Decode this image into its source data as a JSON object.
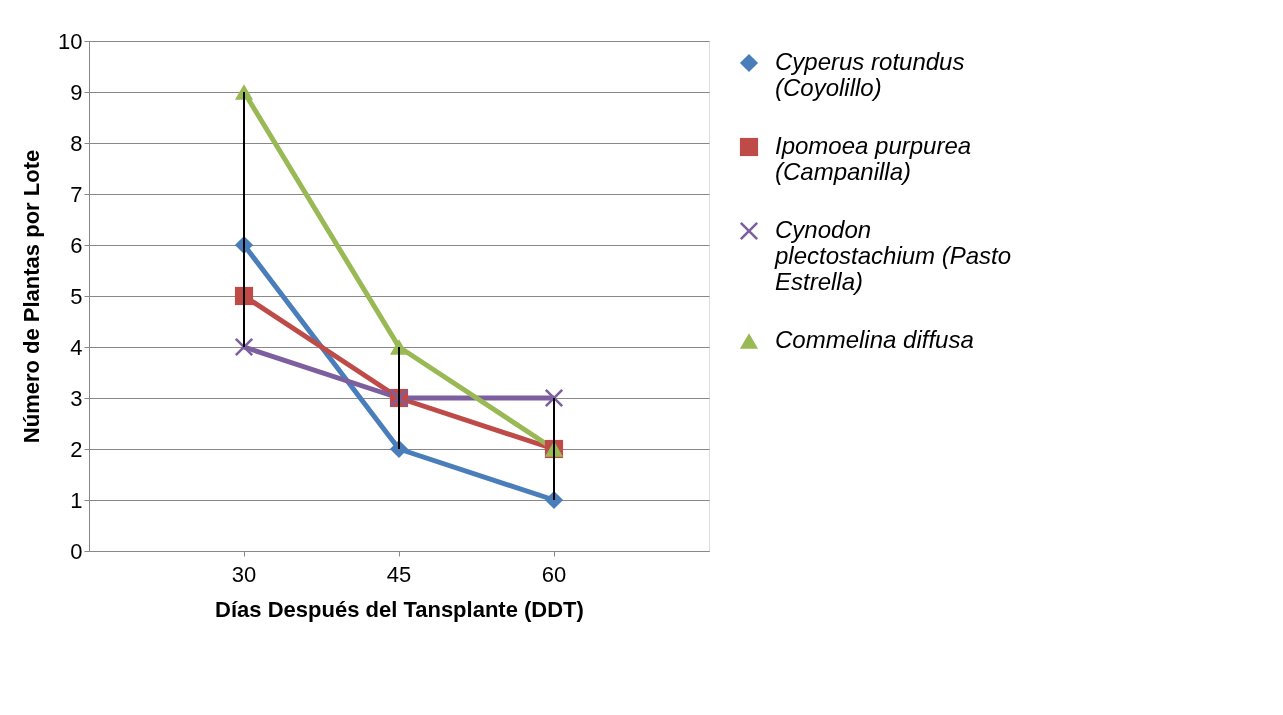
{
  "chart_data": {
    "type": "line",
    "xlabel": "Días  Después del Tansplante  (DDT)",
    "ylabel": "Número de Plantas  por Lote",
    "categories": [
      "30",
      "45",
      "60"
    ],
    "ylim": [
      0,
      10
    ],
    "yticks": [
      0,
      1,
      2,
      3,
      4,
      5,
      6,
      7,
      8,
      9,
      10
    ],
    "grid": "y",
    "legend": "right",
    "line_style": "solid",
    "series": [
      {
        "name": "Cyperus rotundus (Coyolillo)",
        "color": "#4a7ebb",
        "marker": "diamond",
        "values": [
          6,
          2,
          1
        ]
      },
      {
        "name": "Ipomoea purpurea (Campanilla)",
        "color": "#be4b48",
        "marker": "square",
        "values": [
          5,
          3,
          2
        ]
      },
      {
        "name": "Cynodon plectostachium (Pasto Estrella)",
        "color": "#7d5fa0",
        "marker": "cross",
        "values": [
          4,
          3,
          3
        ]
      },
      {
        "name": "Commelina diffusa",
        "color": "#98b954",
        "marker": "triangle",
        "values": [
          9,
          4,
          2
        ]
      },
      {
        "type": "bar",
        "color": "#000000",
        "base": [
          4,
          2,
          1
        ],
        "values": [
          5,
          2,
          2
        ]
      }
    ]
  }
}
